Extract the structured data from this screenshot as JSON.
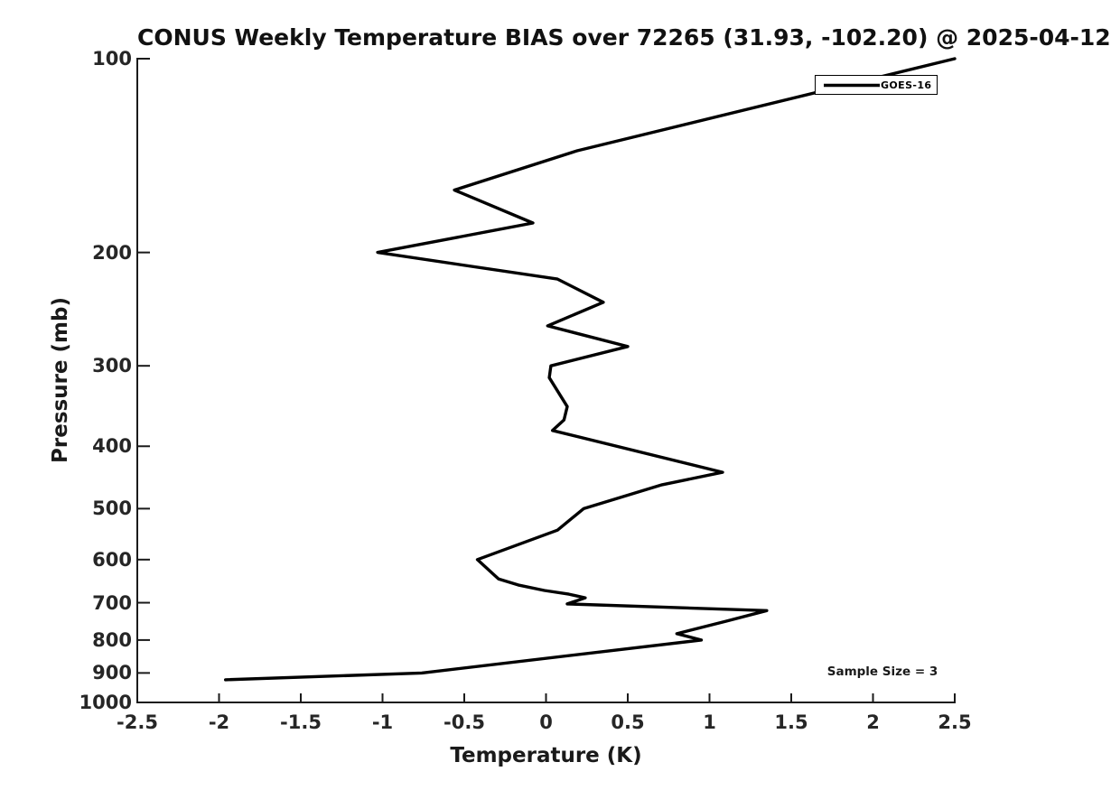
{
  "title": "CONUS Weekly Temperature BIAS over 72265 (31.93, -102.20) @ 2025-04-12",
  "annotation": {
    "text": "Sample Size = 3"
  },
  "legend": {
    "position": "top-right",
    "entries": [
      {
        "label": "GOES-16",
        "color": "#000000"
      }
    ]
  },
  "axes": {
    "x": {
      "label": "Temperature (K)",
      "tick_values": [
        -2.5,
        -2,
        -1.5,
        -1,
        -0.5,
        0,
        0.5,
        1,
        1.5,
        2,
        2.5
      ],
      "tick_labels": [
        "-2.5",
        "-2",
        "-1.5",
        "-1",
        "-0.5",
        "0",
        "0.5",
        "1",
        "1.5",
        "2",
        "2.5"
      ],
      "range": [
        -2.5,
        2.5
      ]
    },
    "y": {
      "label": "Pressure (mb)",
      "tick_values": [
        100,
        200,
        300,
        400,
        500,
        600,
        700,
        800,
        900,
        1000
      ],
      "tick_labels": [
        "100",
        "200",
        "300",
        "400",
        "500",
        "600",
        "700",
        "800",
        "900",
        "1000"
      ],
      "range": [
        100,
        1000
      ],
      "scale": "log",
      "inverted": true
    }
  },
  "colors": {
    "line": "#000000",
    "axis": "#1a1a1a",
    "text": "#1a1a1a",
    "background": "#ffffff"
  },
  "chart_data": {
    "type": "line",
    "title": "CONUS Weekly Temperature BIAS over 72265 (31.93, -102.20) @ 2025-04-12",
    "xlabel": "Temperature (K)",
    "ylabel": "Pressure (mb)",
    "xlim": [
      -2.5,
      2.5
    ],
    "ylim": [
      100,
      1000
    ],
    "y_scale": "log",
    "y_inverted": true,
    "grid": false,
    "legend_position": "top-right",
    "annotation": "Sample Size = 3",
    "series": [
      {
        "name": "GOES-16",
        "color": "#000000",
        "x_units": "K",
        "y_units": "mb",
        "points_temperature_k": [
          2.5,
          0.19,
          -0.56,
          -0.08,
          -1.03,
          0.07,
          0.35,
          0.01,
          0.5,
          0.03,
          0.02,
          0.13,
          0.11,
          0.04,
          1.08,
          0.71,
          0.23,
          0.07,
          -0.42,
          -0.29,
          -0.17,
          -0.01,
          0.14,
          0.24,
          0.13,
          1.35,
          1.1,
          0.8,
          0.95,
          -0.76,
          -1.96
        ],
        "points_pressure_mb": [
          100,
          139,
          160,
          180,
          200,
          220,
          239,
          260,
          280,
          300,
          313,
          347,
          364,
          378,
          439,
          459,
          500,
          540,
          600,
          643,
          657,
          670,
          679,
          688,
          703,
          720,
          748,
          782,
          800,
          900,
          922
        ]
      }
    ]
  }
}
